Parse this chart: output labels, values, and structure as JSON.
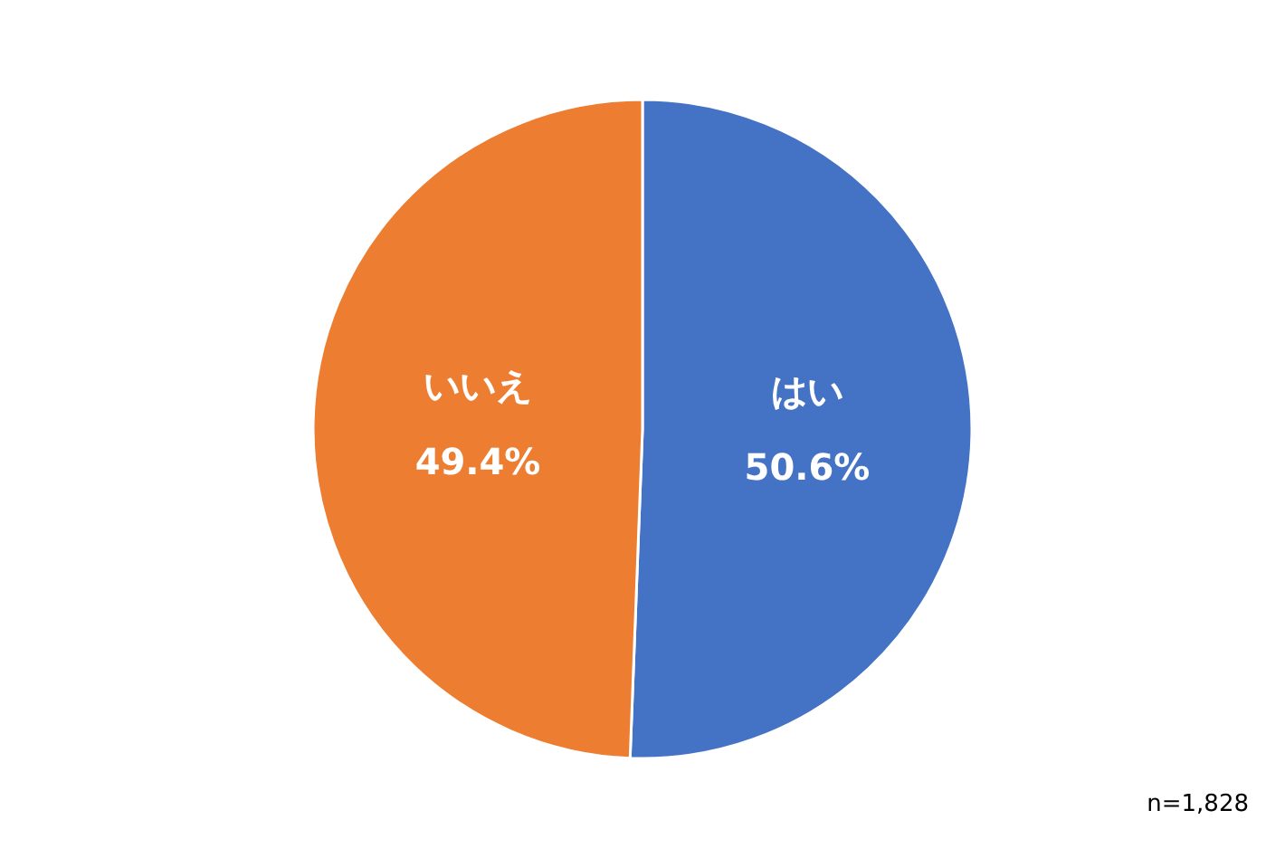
{
  "chart_data": {
    "type": "pie",
    "categories": [
      "はい",
      "いいえ"
    ],
    "values": [
      50.6,
      49.4
    ],
    "colors": [
      "#4472c4",
      "#ed7d31"
    ],
    "value_labels": [
      "50.6%",
      "49.4%"
    ],
    "annotations": [
      "n=1,828"
    ]
  }
}
